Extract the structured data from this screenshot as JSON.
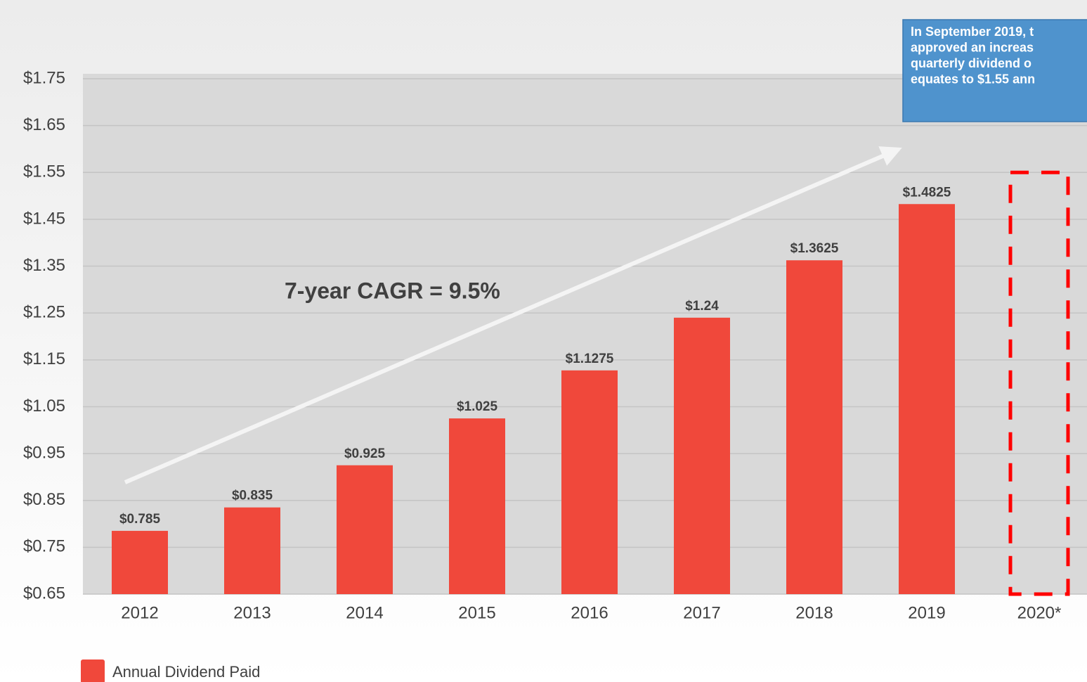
{
  "chart_data": {
    "type": "bar",
    "categories": [
      "2012",
      "2013",
      "2014",
      "2015",
      "2016",
      "2017",
      "2018",
      "2019",
      "2020*"
    ],
    "values": [
      0.785,
      0.835,
      0.925,
      1.025,
      1.1275,
      1.24,
      1.3625,
      1.4825,
      null
    ],
    "value_labels": [
      "$0.785",
      "$0.835",
      "$0.925",
      "$1.025",
      "$1.1275",
      "$1.24",
      "$1.3625",
      "$1.4825",
      null
    ],
    "outline_values": [
      null,
      null,
      null,
      null,
      null,
      null,
      null,
      null,
      1.55
    ],
    "color": "#f0483b",
    "outline_color": "#ff0000",
    "ylim": [
      0.65,
      1.75
    ],
    "yticks": [
      {
        "value": 0.65,
        "label": "$0.65"
      },
      {
        "value": 0.75,
        "label": "$0.75"
      },
      {
        "value": 0.85,
        "label": "$0.85"
      },
      {
        "value": 0.95,
        "label": "$0.95"
      },
      {
        "value": 1.05,
        "label": "$1.05"
      },
      {
        "value": 1.15,
        "label": "$1.15"
      },
      {
        "value": 1.25,
        "label": "$1.25"
      },
      {
        "value": 1.35,
        "label": "$1.35"
      },
      {
        "value": 1.45,
        "label": "$1.45"
      },
      {
        "value": 1.55,
        "label": "$1.55"
      },
      {
        "value": 1.65,
        "label": "$1.65"
      },
      {
        "value": 1.75,
        "label": "$1.75"
      }
    ],
    "grid": true,
    "legend": {
      "name": "Annual Dividend Paid",
      "position": "bottom-left"
    },
    "cagr_annotation": "7-year CAGR = 9.5%",
    "callout_lines": [
      "In September 2019, t",
      "approved an increas",
      "quarterly dividend o",
      "equates to $1.55 ann"
    ]
  }
}
